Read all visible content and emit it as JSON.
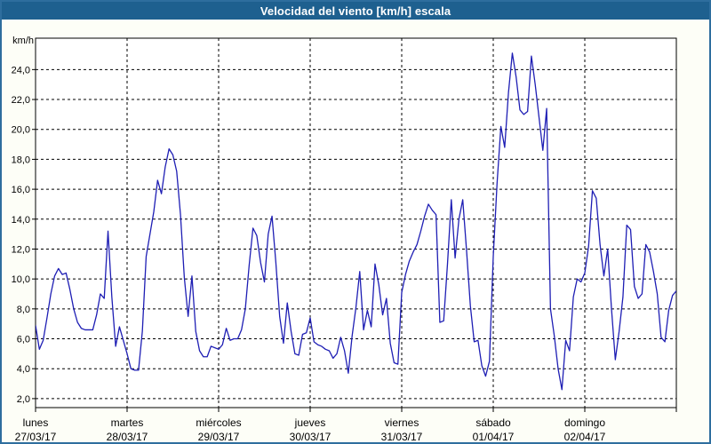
{
  "window": {
    "title": "Velocidad del viento [km/h] escala"
  },
  "colors": {
    "window_border": "#2e6e9e",
    "title_bar_bg": "#1e608f",
    "title_bar_text": "#ffffff",
    "page_bg": "#fdfef7",
    "plot_bg": "#ffffff",
    "grid": "#000000",
    "line": "#1e1eb4"
  },
  "chart_data": {
    "type": "line",
    "title": "Velocidad del viento [km/h] escala",
    "ylabel": "km/h",
    "xlabel": "",
    "grid": "dashed",
    "legend": "none",
    "ylim": [
      1.4,
      26.1
    ],
    "y_tick_values": [
      2,
      4,
      6,
      8,
      10,
      12,
      14,
      16,
      18,
      20,
      22,
      24
    ],
    "y_tick_labels": [
      "2,0",
      "4,0",
      "6,0",
      "8,0",
      "10,0",
      "12,0",
      "14,0",
      "16,0",
      "18,0",
      "20,0",
      "22,0",
      "24,0"
    ],
    "points_per_day": 24,
    "days": [
      {
        "name": "lunes",
        "date": "27/03/17",
        "values": [
          6.9,
          5.3,
          5.9,
          7.4,
          9.0,
          10.2,
          10.7,
          10.3,
          10.4,
          9.3,
          8.0,
          7.1,
          6.7,
          6.6,
          6.6,
          6.6,
          7.6,
          9.0,
          8.7,
          13.2,
          8.8,
          5.5,
          6.8,
          5.9
        ]
      },
      {
        "name": "martes",
        "date": "28/03/17",
        "values": [
          5.0,
          4.0,
          3.9,
          3.9,
          6.5,
          11.5,
          13.0,
          14.5,
          16.6,
          15.7,
          17.5,
          18.7,
          18.3,
          17.2,
          14.3,
          10.1,
          7.5,
          10.2,
          6.5,
          5.2,
          4.8,
          4.8,
          5.5,
          5.4
        ]
      },
      {
        "name": "miércoles",
        "date": "29/03/17",
        "values": [
          5.3,
          5.6,
          6.7,
          5.9,
          6.0,
          6.0,
          6.6,
          8.0,
          10.9,
          13.4,
          12.9,
          11.1,
          9.8,
          13.0,
          14.2,
          11.1,
          7.5,
          5.7,
          8.4,
          6.5,
          5.0,
          4.9,
          6.3,
          6.4
        ]
      },
      {
        "name": "jueves",
        "date": "30/03/17",
        "values": [
          7.4,
          5.8,
          5.6,
          5.5,
          5.3,
          5.2,
          4.7,
          5.0,
          6.1,
          5.2,
          3.7,
          6.2,
          8.1,
          10.5,
          6.6,
          7.9,
          6.8,
          11.0,
          9.6,
          7.6,
          8.7,
          5.7,
          4.4,
          4.3
        ]
      },
      {
        "name": "viernes",
        "date": "31/03/17",
        "values": [
          9.1,
          10.3,
          11.2,
          11.8,
          12.3,
          13.2,
          14.2,
          15.0,
          14.6,
          14.3,
          7.1,
          7.2,
          11.0,
          15.3,
          11.4,
          14.0,
          15.3,
          11.9,
          8.2,
          5.8,
          5.9,
          4.2,
          3.5,
          4.5
        ]
      },
      {
        "name": "sábado",
        "date": "01/04/17",
        "values": [
          11.5,
          16.4,
          20.2,
          18.8,
          22.5,
          25.1,
          23.5,
          21.3,
          21.0,
          21.2,
          24.9,
          23.0,
          20.8,
          18.6,
          21.4,
          8.0,
          6.2,
          4.0,
          2.6,
          5.9,
          5.2,
          8.8,
          10.0,
          9.8
        ]
      },
      {
        "name": "domingo",
        "date": "02/04/17",
        "values": [
          10.4,
          12.2,
          15.9,
          15.4,
          12.3,
          10.2,
          12.0,
          8.0,
          4.6,
          6.5,
          8.8,
          13.6,
          13.3,
          9.5,
          8.7,
          9.0,
          12.3,
          11.8,
          10.5,
          9.0,
          6.1,
          5.8,
          7.9,
          8.9
        ]
      }
    ],
    "final_value": 9.2,
    "series_name": "Velocidad del viento"
  }
}
